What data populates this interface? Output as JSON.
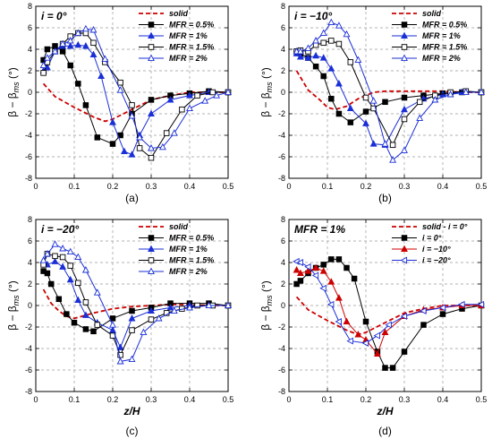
{
  "colors": {
    "solid": "#cc0000",
    "black": "#000000",
    "blue": "#1a2fd6",
    "red_marker": "#cc0000",
    "grid": "#9a9a9a"
  },
  "chart_data": [
    {
      "type": "line",
      "title": "i = 0°",
      "caption": "(a)",
      "xlabel": "",
      "ylabel": "β − βms (°)",
      "xlim": [
        0,
        0.5
      ],
      "ylim": [
        -8,
        8
      ],
      "xticks": [
        "0",
        "0.1",
        "0.2",
        "0.3",
        "0.4",
        "0.5"
      ],
      "yticks": [
        "-8",
        "-6",
        "-4",
        "-2",
        "0",
        "2",
        "4",
        "6",
        "8"
      ],
      "grid": true,
      "legend_position": "top-right",
      "series": [
        {
          "name": "solid",
          "style": "dashed-red",
          "x": [
            0.02,
            0.05,
            0.1,
            0.15,
            0.18,
            0.2,
            0.25,
            0.3,
            0.35,
            0.4,
            0.45,
            0.5
          ],
          "y": [
            0.8,
            -0.4,
            -1.4,
            -2.3,
            -2.7,
            -2.5,
            -1.6,
            -0.7,
            -0.3,
            0,
            0,
            0
          ]
        },
        {
          "name": "MFR = 0.5%",
          "style": "filled-square",
          "x": [
            0.02,
            0.03,
            0.05,
            0.07,
            0.09,
            0.11,
            0.13,
            0.16,
            0.2,
            0.22,
            0.25,
            0.3,
            0.35,
            0.4,
            0.45,
            0.5
          ],
          "y": [
            3.0,
            4.0,
            4.3,
            3.8,
            2.5,
            0.8,
            -1.2,
            -4.2,
            -4.8,
            -4.0,
            -2.0,
            -0.7,
            -0.3,
            -0.1,
            0.1,
            0
          ]
        },
        {
          "name": "MFR = 1%",
          "style": "filled-triangle",
          "x": [
            0.02,
            0.03,
            0.05,
            0.07,
            0.09,
            0.11,
            0.13,
            0.15,
            0.17,
            0.2,
            0.23,
            0.25,
            0.27,
            0.3,
            0.35,
            0.4,
            0.45,
            0.5
          ],
          "y": [
            2.0,
            2.3,
            3.8,
            4.3,
            4.3,
            4.4,
            4.3,
            3.5,
            1.5,
            -2.8,
            -5.5,
            -5.8,
            -4.0,
            -2.0,
            -0.7,
            -0.3,
            0,
            0
          ]
        },
        {
          "name": "MFR = 1.5%",
          "style": "open-square",
          "x": [
            0.02,
            0.03,
            0.05,
            0.07,
            0.09,
            0.11,
            0.13,
            0.15,
            0.18,
            0.22,
            0.25,
            0.27,
            0.3,
            0.34,
            0.38,
            0.42,
            0.46,
            0.5
          ],
          "y": [
            1.8,
            2.8,
            3.8,
            4.5,
            5.2,
            5.5,
            5.5,
            4.6,
            2.8,
            0.9,
            -1.2,
            -5.2,
            -6.1,
            -3.8,
            -1.6,
            -0.3,
            0,
            0
          ]
        },
        {
          "name": "MFR = 2%",
          "style": "open-triangle",
          "x": [
            0.02,
            0.03,
            0.05,
            0.07,
            0.09,
            0.11,
            0.13,
            0.15,
            0.18,
            0.22,
            0.25,
            0.27,
            0.3,
            0.33,
            0.36,
            0.4,
            0.44,
            0.47,
            0.5
          ],
          "y": [
            2.5,
            3.2,
            3.8,
            4.5,
            4.8,
            5.5,
            5.9,
            5.8,
            3.1,
            0.2,
            -2.2,
            -4.2,
            -5.2,
            -5.1,
            -3.8,
            -1.5,
            -0.8,
            -0.3,
            0
          ]
        }
      ]
    },
    {
      "type": "line",
      "title": "i = −10°",
      "caption": "(b)",
      "xlabel": "",
      "ylabel": "β − βms (°)",
      "xlim": [
        0,
        0.5
      ],
      "ylim": [
        -8,
        8
      ],
      "xticks": [
        "0",
        "0.1",
        "0.2",
        "0.3",
        "0.4",
        "0.5"
      ],
      "yticks": [
        "-8",
        "-6",
        "-4",
        "-2",
        "0",
        "2",
        "4",
        "6",
        "8"
      ],
      "grid": true,
      "legend_position": "top-right",
      "series": [
        {
          "name": "solid",
          "style": "dashed-red",
          "x": [
            0.02,
            0.05,
            0.08,
            0.1,
            0.12,
            0.15,
            0.18,
            0.22,
            0.25,
            0.3,
            0.35,
            0.4,
            0.45,
            0.5
          ],
          "y": [
            2.0,
            0.2,
            -0.7,
            -1.4,
            -1.6,
            -1.3,
            -0.6,
            0,
            0.1,
            0.1,
            0.1,
            0.1,
            0,
            0
          ]
        },
        {
          "name": "MFR = 0.5%",
          "style": "filled-square",
          "x": [
            0.02,
            0.03,
            0.05,
            0.07,
            0.09,
            0.11,
            0.13,
            0.16,
            0.2,
            0.25,
            0.3,
            0.35,
            0.4,
            0.45,
            0.5
          ],
          "y": [
            3.8,
            3.6,
            3.2,
            2.4,
            1.5,
            -0.6,
            -2.0,
            -2.8,
            -1.8,
            -0.9,
            -0.5,
            -0.3,
            -0.1,
            0,
            0
          ]
        },
        {
          "name": "MFR = 1%",
          "style": "filled-triangle",
          "x": [
            0.02,
            0.03,
            0.05,
            0.07,
            0.09,
            0.11,
            0.13,
            0.16,
            0.2,
            0.22,
            0.25,
            0.3,
            0.35,
            0.4,
            0.45,
            0.5
          ],
          "y": [
            3.6,
            3.3,
            3.2,
            3.4,
            3.2,
            2.2,
            0.8,
            -1.5,
            -2.9,
            -4.8,
            -4.9,
            -1.6,
            -0.6,
            -0.2,
            0,
            0
          ]
        },
        {
          "name": "MFR = 1.5%",
          "style": "open-square",
          "x": [
            0.02,
            0.03,
            0.05,
            0.07,
            0.09,
            0.11,
            0.13,
            0.16,
            0.2,
            0.22,
            0.27,
            0.3,
            0.34,
            0.38,
            0.42,
            0.46,
            0.5
          ],
          "y": [
            3.8,
            3.9,
            3.8,
            4.4,
            4.6,
            4.8,
            4.5,
            2.8,
            -0.5,
            -1.5,
            -4.9,
            -2.5,
            -0.9,
            -0.3,
            0,
            0.1,
            0
          ]
        },
        {
          "name": "MFR = 2%",
          "style": "open-triangle",
          "x": [
            0.02,
            0.03,
            0.05,
            0.07,
            0.09,
            0.11,
            0.13,
            0.15,
            0.18,
            0.22,
            0.25,
            0.27,
            0.3,
            0.34,
            0.38,
            0.42,
            0.46,
            0.5
          ],
          "y": [
            3.8,
            3.8,
            4.1,
            4.8,
            5.5,
            6.5,
            6.2,
            5.4,
            3.0,
            -0.8,
            -4.8,
            -6.3,
            -5.4,
            -2.4,
            -0.7,
            -0.2,
            0,
            0
          ]
        }
      ]
    },
    {
      "type": "line",
      "title": "i = −20°",
      "caption": "(c)",
      "xlabel": "z/H",
      "ylabel": "β − βms (°)",
      "xlim": [
        0,
        0.5
      ],
      "ylim": [
        -8,
        8
      ],
      "xticks": [
        "0",
        "0.1",
        "0.2",
        "0.3",
        "0.4",
        "0.5"
      ],
      "yticks": [
        "-8",
        "-6",
        "-4",
        "-2",
        "0",
        "2",
        "4",
        "6",
        "8"
      ],
      "grid": true,
      "legend_position": "top-right",
      "series": [
        {
          "name": "solid",
          "style": "dashed-red",
          "x": [
            0.02,
            0.04,
            0.06,
            0.08,
            0.1,
            0.12,
            0.15,
            0.2,
            0.25,
            0.3,
            0.35,
            0.4,
            0.45,
            0.5
          ],
          "y": [
            1.5,
            0.2,
            -0.5,
            -1.0,
            -1.2,
            -1.0,
            -0.7,
            -0.3,
            -0.1,
            0,
            0.1,
            0.1,
            0,
            0
          ]
        },
        {
          "name": "MFR = 0.5%",
          "style": "filled-square",
          "x": [
            0.02,
            0.03,
            0.04,
            0.06,
            0.08,
            0.1,
            0.13,
            0.15,
            0.2,
            0.25,
            0.3,
            0.35,
            0.4,
            0.45,
            0.5
          ],
          "y": [
            3.2,
            3.0,
            2.0,
            0.6,
            -0.8,
            -1.6,
            -2.2,
            -2.4,
            -1.2,
            -0.5,
            -0.2,
            0.2,
            0.2,
            0.2,
            0
          ]
        },
        {
          "name": "MFR = 1%",
          "style": "filled-triangle",
          "x": [
            0.02,
            0.03,
            0.05,
            0.07,
            0.09,
            0.11,
            0.13,
            0.16,
            0.2,
            0.22,
            0.25,
            0.3,
            0.35,
            0.4,
            0.45,
            0.5
          ],
          "y": [
            4.2,
            3.8,
            4.1,
            3.6,
            2.4,
            0.5,
            -0.9,
            -1.6,
            -2.3,
            -3.9,
            -1.2,
            -0.5,
            -0.2,
            0,
            0,
            0
          ]
        },
        {
          "name": "MFR = 1.5%",
          "style": "open-square",
          "x": [
            0.02,
            0.03,
            0.05,
            0.07,
            0.09,
            0.11,
            0.13,
            0.16,
            0.2,
            0.22,
            0.25,
            0.3,
            0.34,
            0.38,
            0.42,
            0.46,
            0.5
          ],
          "y": [
            3.8,
            4.8,
            4.6,
            4.5,
            3.7,
            2.1,
            0.3,
            -1.8,
            -2.8,
            -4.6,
            -2.3,
            -1.3,
            -0.7,
            -0.3,
            0,
            0,
            0
          ]
        },
        {
          "name": "MFR = 2%",
          "style": "open-triangle",
          "x": [
            0.02,
            0.03,
            0.05,
            0.07,
            0.09,
            0.11,
            0.13,
            0.16,
            0.2,
            0.22,
            0.25,
            0.28,
            0.32,
            0.36,
            0.4,
            0.45,
            0.5
          ],
          "y": [
            4.2,
            4.8,
            5.7,
            5.3,
            5.0,
            4.5,
            3.3,
            1.2,
            -1.8,
            -5.2,
            -5.0,
            -2.5,
            -1.2,
            -0.5,
            -0.2,
            0,
            0
          ]
        }
      ]
    },
    {
      "type": "line",
      "title": "MFR = 1%",
      "caption": "(d)",
      "xlabel": "z/H",
      "ylabel": "β − βms (°)",
      "xlim": [
        0,
        0.5
      ],
      "ylim": [
        -8,
        8
      ],
      "xticks": [
        "0",
        "0.1",
        "0.2",
        "0.3",
        "0.4",
        "0.5"
      ],
      "yticks": [
        "-8",
        "-6",
        "-4",
        "-2",
        "0",
        "2",
        "4",
        "6",
        "8"
      ],
      "grid": true,
      "legend_position": "top-right",
      "series": [
        {
          "name": "solid - i = 0°",
          "style": "dashed-red",
          "x": [
            0.02,
            0.05,
            0.1,
            0.15,
            0.18,
            0.2,
            0.25,
            0.3,
            0.35,
            0.4,
            0.45,
            0.5
          ],
          "y": [
            0.8,
            -0.4,
            -1.4,
            -2.3,
            -2.7,
            -2.5,
            -1.6,
            -0.7,
            -0.3,
            0,
            0,
            0
          ]
        },
        {
          "name": "i = 0°",
          "style": "filled-square",
          "x": [
            0.02,
            0.03,
            0.05,
            0.07,
            0.09,
            0.11,
            0.13,
            0.15,
            0.17,
            0.2,
            0.23,
            0.25,
            0.27,
            0.3,
            0.35,
            0.4,
            0.45,
            0.5
          ],
          "y": [
            2.0,
            2.3,
            3.0,
            3.5,
            3.8,
            4.3,
            4.3,
            3.5,
            2.5,
            -1.5,
            -4.3,
            -5.8,
            -5.8,
            -4.3,
            -1.8,
            -0.8,
            -0.3,
            0
          ]
        },
        {
          "name": "i = −10°",
          "style": "filled-red-triangle",
          "x": [
            0.02,
            0.03,
            0.05,
            0.07,
            0.09,
            0.11,
            0.13,
            0.15,
            0.18,
            0.2,
            0.23,
            0.25,
            0.3,
            0.35,
            0.4,
            0.45,
            0.5
          ],
          "y": [
            3.3,
            3.0,
            3.2,
            3.5,
            3.2,
            2.2,
            0.7,
            -1.5,
            -2.7,
            -3.2,
            -4.5,
            -2.5,
            -1.0,
            -0.4,
            -0.2,
            0,
            0
          ]
        },
        {
          "name": "i = −20°",
          "style": "open-left-triangle",
          "x": [
            0.02,
            0.03,
            0.05,
            0.07,
            0.09,
            0.11,
            0.13,
            0.16,
            0.2,
            0.23,
            0.26,
            0.3,
            0.35,
            0.4,
            0.45,
            0.5
          ],
          "y": [
            4.1,
            4.0,
            3.6,
            2.8,
            1.6,
            0.1,
            -1.5,
            -3.3,
            -3.5,
            -2.8,
            -1.8,
            -1.0,
            -0.5,
            -0.2,
            0.1,
            0.1
          ]
        }
      ]
    }
  ]
}
